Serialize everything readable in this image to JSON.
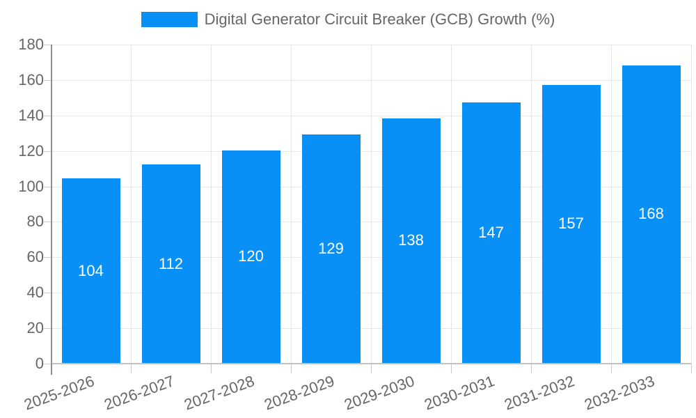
{
  "legend": {
    "label": "Digital Generator Circuit Breaker (GCB) Growth (%)"
  },
  "colors": {
    "bar": "#0990f6",
    "grid": "#e6e6e6",
    "tick_mark": "#c9c9c9",
    "y_axis_line": "#8f8f8f",
    "x_axis_line": "#c2c2c2",
    "axis_text": "#666666",
    "value_label_text": "#ffffff"
  },
  "chart_data": {
    "type": "bar",
    "title": "",
    "xlabel": "",
    "ylabel": "",
    "categories": [
      "2025-2026",
      "2026-2027",
      "2027-2028",
      "2028-2029",
      "2029-2030",
      "2030-2031",
      "2031-2032",
      "2032-2033"
    ],
    "series": [
      {
        "name": "Digital Generator Circuit Breaker (GCB) Growth (%)",
        "values": [
          104,
          112,
          120,
          129,
          138,
          147,
          157,
          168
        ]
      }
    ],
    "values": [
      104,
      112,
      120,
      129,
      138,
      147,
      157,
      168
    ],
    "value_labels_shown": true,
    "ylim": [
      0,
      180
    ],
    "yticks": [
      0,
      20,
      40,
      60,
      80,
      100,
      120,
      140,
      160,
      180
    ],
    "grid": true,
    "legend_position": "top",
    "x_label_rotation_deg": 20
  }
}
